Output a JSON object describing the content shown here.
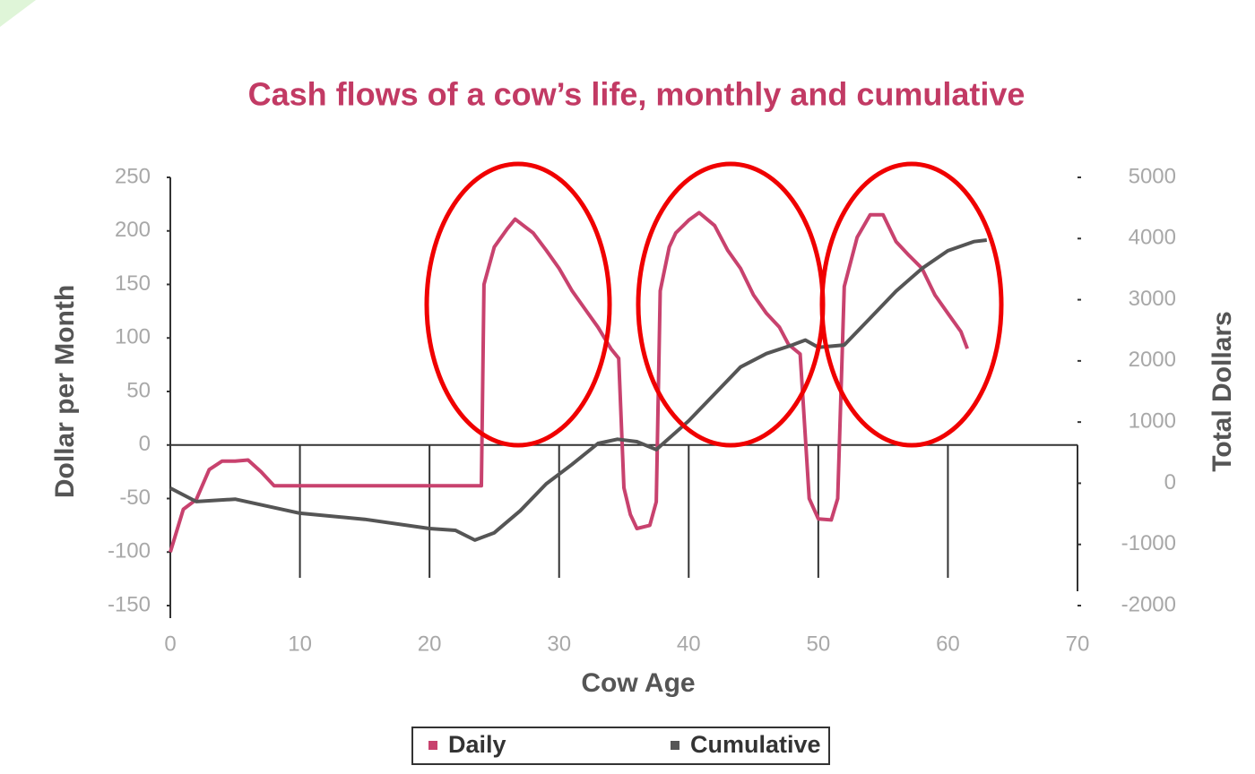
{
  "chart_data": {
    "type": "line",
    "title": "Cash flows of a cow’s life, monthly and cumulative",
    "x_label": "Cow Age",
    "y_label": "Dollar per Month",
    "y2_label": "Total Dollars",
    "xlim": [
      0,
      70
    ],
    "xticks": [
      0,
      10,
      20,
      30,
      40,
      50,
      60,
      70
    ],
    "ylim": [
      -150,
      250
    ],
    "yticks": [
      -150,
      -100,
      -50,
      0,
      50,
      100,
      150,
      200,
      250
    ],
    "y2lim": [
      -2000,
      5000
    ],
    "y2ticks": [
      -2000,
      -1000,
      0,
      1000,
      2000,
      3000,
      4000,
      5000
    ],
    "series": [
      {
        "name": "Daily",
        "color": "#c8426e",
        "x": [
          0,
          1,
          2,
          3,
          4,
          5,
          6,
          7,
          8,
          24,
          24.2,
          25,
          26,
          26.6,
          28,
          29,
          30,
          31,
          32,
          33,
          34,
          34.6,
          35,
          35.5,
          36,
          37,
          37.5,
          37.8,
          38.5,
          39,
          40,
          40.8,
          42,
          43,
          44,
          45,
          46,
          47,
          47.7,
          48.6,
          49.3,
          50,
          51,
          51.5,
          52,
          53,
          54,
          55,
          56,
          57,
          58,
          59,
          60,
          61,
          61.5
        ],
        "values": [
          -100,
          -60,
          -51,
          -23,
          -15,
          -15,
          -14,
          -25,
          -38,
          -38,
          150,
          185,
          202,
          211,
          198,
          182,
          165,
          144,
          127,
          110,
          90,
          81,
          -40,
          -65,
          -78,
          -75,
          -53,
          144,
          185,
          198,
          210,
          217,
          205,
          182,
          165,
          140,
          123,
          110,
          94,
          85,
          -50,
          -69,
          -70,
          -50,
          148,
          194,
          215,
          215,
          190,
          177,
          165,
          140,
          123,
          106,
          90
        ]
      },
      {
        "name": "Cumulative",
        "color": "#555555",
        "axis": "y2",
        "x": [
          0,
          2,
          5,
          10,
          15,
          20,
          22,
          23.5,
          25,
          27,
          29,
          31,
          33,
          34.5,
          36,
          37.5,
          40,
          42,
          44,
          46,
          48,
          49,
          50,
          52,
          54,
          56,
          58,
          60,
          62,
          63
        ],
        "values": [
          -80,
          -300,
          -260,
          -490,
          -590,
          -740,
          -770,
          -930,
          -810,
          -450,
          -10,
          310,
          650,
          720,
          680,
          550,
          1020,
          1460,
          1900,
          2120,
          2260,
          2340,
          2220,
          2260,
          2700,
          3140,
          3510,
          3800,
          3950,
          3975
        ]
      }
    ]
  }
}
